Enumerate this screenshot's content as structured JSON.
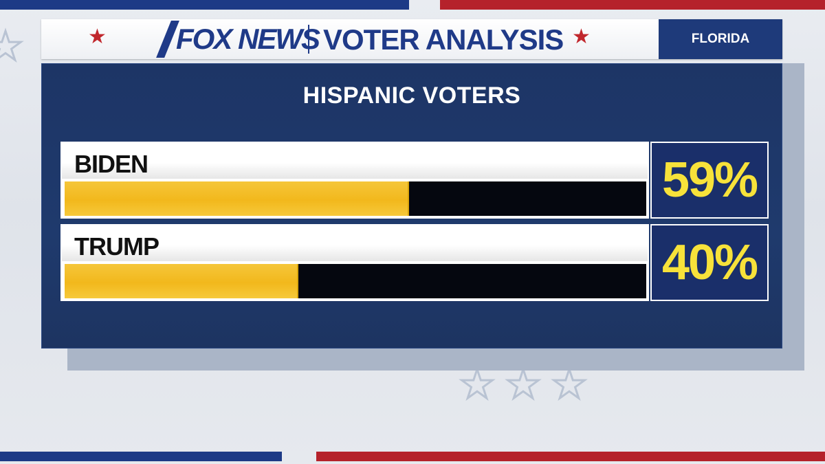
{
  "header": {
    "brand": "FOX NEWS",
    "title": "VOTER ANALYSIS",
    "state": "FLORIDA"
  },
  "colors": {
    "header_blue": "#1f3a88",
    "star_red": "#c1272d",
    "panel_navy": "#1d3566",
    "bar_fill": "#f2b81c",
    "bar_track": "#05070f",
    "value_text": "#f7e23a"
  },
  "icons": [
    "red-star-icon",
    "fox-news-logo",
    "decorative-star-icon"
  ],
  "chart_data": {
    "type": "bar",
    "orientation": "horizontal",
    "title": "HISPANIC VOTERS",
    "categories": [
      "BIDEN",
      "TRUMP"
    ],
    "values": [
      59,
      40
    ],
    "value_labels": [
      "59%",
      "40%"
    ],
    "xlim": [
      0,
      100
    ],
    "grid": false,
    "legend": "none"
  }
}
